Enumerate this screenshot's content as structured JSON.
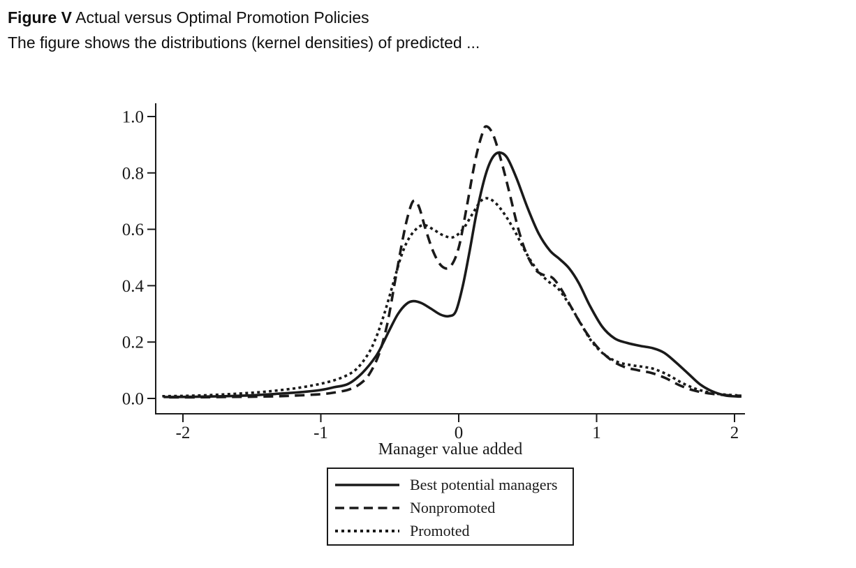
{
  "header": {
    "figure_label": "Figure V",
    "figure_title": " Actual versus Optimal Promotion Policies",
    "subtitle": "The figure shows the distributions (kernel densities) of predicted ..."
  },
  "chart_data": {
    "type": "line",
    "title": "",
    "xlabel": "Manager value added",
    "ylabel": "",
    "xlim": [
      -2.2,
      2.08
    ],
    "ylim": [
      0.0,
      1.05
    ],
    "grid": false,
    "legend_position": "bottom",
    "line_color": "#1a1a1a",
    "x_ticks": [
      -2,
      -1,
      0,
      1,
      2
    ],
    "x_tick_labels": [
      "-2",
      "-1",
      "0",
      "1",
      "2"
    ],
    "y_ticks": [
      1.0,
      0.8,
      0.6,
      0.4,
      0.2,
      0.0
    ],
    "y_tick_labels": [
      "1.0",
      "0.8",
      "0.6",
      "0.4",
      "0.2",
      "0.0"
    ],
    "series": [
      {
        "name": "Best potential managers",
        "style": "solid",
        "points": [
          [
            -2.14,
            0.005
          ],
          [
            -1.9,
            0.006
          ],
          [
            -1.7,
            0.008
          ],
          [
            -1.5,
            0.011
          ],
          [
            -1.3,
            0.017
          ],
          [
            -1.15,
            0.022
          ],
          [
            -1.0,
            0.03
          ],
          [
            -0.9,
            0.04
          ],
          [
            -0.8,
            0.052
          ],
          [
            -0.7,
            0.09
          ],
          [
            -0.6,
            0.15
          ],
          [
            -0.55,
            0.195
          ],
          [
            -0.5,
            0.245
          ],
          [
            -0.44,
            0.3
          ],
          [
            -0.38,
            0.335
          ],
          [
            -0.33,
            0.345
          ],
          [
            -0.27,
            0.338
          ],
          [
            -0.2,
            0.318
          ],
          [
            -0.13,
            0.297
          ],
          [
            -0.07,
            0.292
          ],
          [
            -0.02,
            0.31
          ],
          [
            0.03,
            0.4
          ],
          [
            0.08,
            0.525
          ],
          [
            0.13,
            0.66
          ],
          [
            0.19,
            0.785
          ],
          [
            0.24,
            0.85
          ],
          [
            0.29,
            0.872
          ],
          [
            0.35,
            0.855
          ],
          [
            0.42,
            0.78
          ],
          [
            0.5,
            0.675
          ],
          [
            0.58,
            0.585
          ],
          [
            0.66,
            0.525
          ],
          [
            0.73,
            0.495
          ],
          [
            0.8,
            0.462
          ],
          [
            0.87,
            0.41
          ],
          [
            0.95,
            0.33
          ],
          [
            1.04,
            0.255
          ],
          [
            1.13,
            0.213
          ],
          [
            1.22,
            0.197
          ],
          [
            1.32,
            0.186
          ],
          [
            1.41,
            0.178
          ],
          [
            1.49,
            0.162
          ],
          [
            1.57,
            0.13
          ],
          [
            1.66,
            0.09
          ],
          [
            1.75,
            0.05
          ],
          [
            1.84,
            0.025
          ],
          [
            1.93,
            0.011
          ],
          [
            2.02,
            0.007
          ],
          [
            2.05,
            0.007
          ]
        ]
      },
      {
        "name": "Nonpromoted",
        "style": "dashed",
        "points": [
          [
            -2.1,
            0.004
          ],
          [
            -1.9,
            0.004
          ],
          [
            -1.7,
            0.005
          ],
          [
            -1.5,
            0.006
          ],
          [
            -1.3,
            0.008
          ],
          [
            -1.15,
            0.011
          ],
          [
            -1.0,
            0.015
          ],
          [
            -0.9,
            0.021
          ],
          [
            -0.8,
            0.031
          ],
          [
            -0.72,
            0.05
          ],
          [
            -0.65,
            0.085
          ],
          [
            -0.58,
            0.155
          ],
          [
            -0.52,
            0.26
          ],
          [
            -0.46,
            0.42
          ],
          [
            -0.41,
            0.555
          ],
          [
            -0.37,
            0.645
          ],
          [
            -0.33,
            0.7
          ],
          [
            -0.29,
            0.682
          ],
          [
            -0.24,
            0.6
          ],
          [
            -0.18,
            0.515
          ],
          [
            -0.12,
            0.468
          ],
          [
            -0.06,
            0.468
          ],
          [
            0.0,
            0.535
          ],
          [
            0.06,
            0.685
          ],
          [
            0.12,
            0.845
          ],
          [
            0.17,
            0.938
          ],
          [
            0.2,
            0.965
          ],
          [
            0.25,
            0.935
          ],
          [
            0.31,
            0.84
          ],
          [
            0.37,
            0.725
          ],
          [
            0.43,
            0.605
          ],
          [
            0.49,
            0.515
          ],
          [
            0.56,
            0.455
          ],
          [
            0.63,
            0.435
          ],
          [
            0.68,
            0.428
          ],
          [
            0.74,
            0.39
          ],
          [
            0.82,
            0.32
          ],
          [
            0.91,
            0.245
          ],
          [
            1.0,
            0.185
          ],
          [
            1.1,
            0.138
          ],
          [
            1.2,
            0.112
          ],
          [
            1.3,
            0.1
          ],
          [
            1.4,
            0.09
          ],
          [
            1.5,
            0.072
          ],
          [
            1.6,
            0.047
          ],
          [
            1.7,
            0.029
          ],
          [
            1.8,
            0.019
          ],
          [
            1.9,
            0.013
          ],
          [
            2.0,
            0.01
          ],
          [
            2.05,
            0.01
          ]
        ]
      },
      {
        "name": "Promoted",
        "style": "dotted",
        "points": [
          [
            -2.15,
            0.008
          ],
          [
            -2.0,
            0.009
          ],
          [
            -1.8,
            0.012
          ],
          [
            -1.6,
            0.017
          ],
          [
            -1.4,
            0.024
          ],
          [
            -1.2,
            0.035
          ],
          [
            -1.05,
            0.047
          ],
          [
            -0.92,
            0.062
          ],
          [
            -0.82,
            0.08
          ],
          [
            -0.74,
            0.105
          ],
          [
            -0.66,
            0.155
          ],
          [
            -0.6,
            0.215
          ],
          [
            -0.54,
            0.3
          ],
          [
            -0.48,
            0.4
          ],
          [
            -0.42,
            0.5
          ],
          [
            -0.37,
            0.56
          ],
          [
            -0.31,
            0.6
          ],
          [
            -0.25,
            0.615
          ],
          [
            -0.18,
            0.598
          ],
          [
            -0.11,
            0.578
          ],
          [
            -0.04,
            0.572
          ],
          [
            0.03,
            0.6
          ],
          [
            0.1,
            0.655
          ],
          [
            0.16,
            0.7
          ],
          [
            0.21,
            0.71
          ],
          [
            0.27,
            0.692
          ],
          [
            0.34,
            0.648
          ],
          [
            0.41,
            0.59
          ],
          [
            0.49,
            0.515
          ],
          [
            0.57,
            0.455
          ],
          [
            0.65,
            0.415
          ],
          [
            0.72,
            0.39
          ],
          [
            0.8,
            0.335
          ],
          [
            0.88,
            0.27
          ],
          [
            0.96,
            0.205
          ],
          [
            1.05,
            0.158
          ],
          [
            1.15,
            0.13
          ],
          [
            1.25,
            0.118
          ],
          [
            1.34,
            0.112
          ],
          [
            1.42,
            0.104
          ],
          [
            1.52,
            0.083
          ],
          [
            1.62,
            0.055
          ],
          [
            1.72,
            0.034
          ],
          [
            1.82,
            0.021
          ],
          [
            1.92,
            0.014
          ],
          [
            2.02,
            0.011
          ]
        ]
      }
    ]
  },
  "legend": {
    "items": [
      {
        "label": "Best potential managers",
        "style": "solid"
      },
      {
        "label": "Nonpromoted",
        "style": "dashed"
      },
      {
        "label": "Promoted",
        "style": "dotted"
      }
    ]
  }
}
